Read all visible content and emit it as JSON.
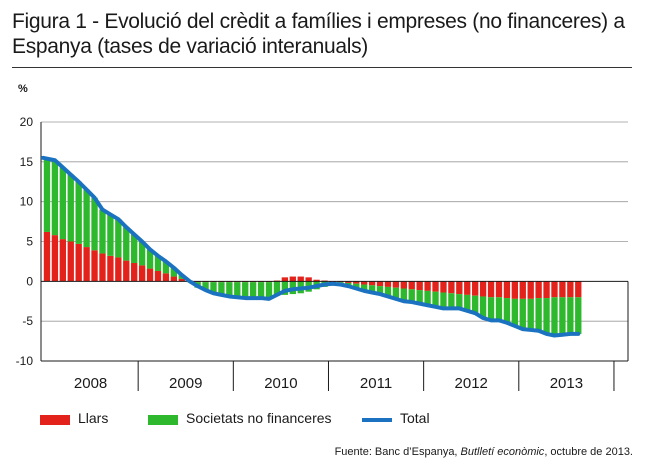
{
  "title": "Figura 1 - Evolució del crèdit a famílies i empreses (no financeres) a Espanya (tases de variació interanuals)",
  "unit_label": "%",
  "legend": {
    "households": "Llars",
    "companies": "Societats no financeres",
    "total": "Total"
  },
  "source": {
    "prefix": "Fuente: Banc d’Espanya, ",
    "publication": "Butlletí econòmic",
    "suffix": ", octubre de 2013."
  },
  "colors": {
    "households": "#e3221b",
    "companies": "#2db82d",
    "total": "#1a72c0"
  },
  "chart_data": {
    "type": "bar",
    "title": "",
    "xlabel": "",
    "ylabel": "%",
    "ylim": [
      -10,
      20
    ],
    "yticks": [
      20,
      15,
      10,
      5,
      0,
      -5,
      -10
    ],
    "x_tick_labels": [
      "2008",
      "2009",
      "2010",
      "2011",
      "2012",
      "2013"
    ],
    "grid": true,
    "legend_position": "bottom",
    "period": "monthly, Jan 2008 – Aug 2013",
    "series": [
      {
        "name": "Llars",
        "kind": "stacked-bar",
        "values": [
          6.2,
          5.8,
          5.3,
          5.0,
          4.7,
          4.3,
          3.9,
          3.5,
          3.2,
          3.0,
          2.6,
          2.3,
          2.0,
          1.6,
          1.3,
          1.0,
          0.6,
          0.3,
          0.1,
          -0.1,
          -0.1,
          -0.1,
          -0.1,
          -0.1,
          -0.1,
          -0.1,
          -0.1,
          -0.1,
          -0.1,
          0.1,
          0.5,
          0.6,
          0.6,
          0.5,
          0.2,
          0.1,
          -0.1,
          -0.1,
          -0.2,
          -0.3,
          -0.4,
          -0.5,
          -0.6,
          -0.7,
          -0.8,
          -0.9,
          -1.0,
          -1.1,
          -1.2,
          -1.3,
          -1.4,
          -1.5,
          -1.6,
          -1.7,
          -1.8,
          -1.9,
          -2.0,
          -2.0,
          -2.1,
          -2.2,
          -2.2,
          -2.2,
          -2.1,
          -2.1,
          -2.0,
          -2.0,
          -2.0,
          -2.0
        ]
      },
      {
        "name": "Societats no financeres",
        "kind": "stacked-bar",
        "values": [
          9.3,
          9.4,
          9.0,
          8.4,
          7.8,
          7.2,
          6.6,
          5.5,
          5.2,
          4.8,
          4.2,
          3.6,
          3.0,
          2.4,
          1.9,
          1.5,
          1.1,
          0.5,
          -0.1,
          -0.7,
          -1.0,
          -1.4,
          -1.6,
          -1.8,
          -1.9,
          -2.0,
          -2.0,
          -2.0,
          -2.1,
          -1.8,
          -1.7,
          -1.6,
          -1.5,
          -1.3,
          -1.0,
          -0.7,
          -0.4,
          -0.3,
          -0.4,
          -0.6,
          -0.8,
          -0.9,
          -1.0,
          -1.2,
          -1.4,
          -1.6,
          -1.6,
          -1.7,
          -1.8,
          -1.9,
          -2.0,
          -1.9,
          -1.8,
          -2.0,
          -2.2,
          -2.7,
          -2.9,
          -2.9,
          -3.1,
          -3.4,
          -3.8,
          -3.9,
          -4.1,
          -4.5,
          -4.8,
          -4.7,
          -4.6,
          -4.6
        ]
      },
      {
        "name": "Total",
        "kind": "line",
        "values": [
          15.5,
          15.2,
          14.3,
          13.4,
          12.5,
          11.5,
          10.5,
          9.0,
          8.4,
          7.8,
          6.8,
          5.9,
          5.0,
          4.0,
          3.2,
          2.5,
          1.7,
          0.8,
          0.0,
          -0.6,
          -1.1,
          -1.5,
          -1.7,
          -1.9,
          -2.0,
          -2.1,
          -2.1,
          -2.1,
          -2.2,
          -1.7,
          -1.2,
          -1.0,
          -0.9,
          -0.8,
          -0.6,
          -0.4,
          -0.3,
          -0.4,
          -0.6,
          -0.9,
          -1.2,
          -1.4,
          -1.6,
          -1.9,
          -2.2,
          -2.5,
          -2.6,
          -2.8,
          -3.0,
          -3.2,
          -3.4,
          -3.4,
          -3.4,
          -3.7,
          -4.0,
          -4.6,
          -4.9,
          -4.9,
          -5.2,
          -5.6,
          -6.0,
          -6.1,
          -6.2,
          -6.6,
          -6.8,
          -6.7,
          -6.6,
          -6.6
        ]
      }
    ]
  }
}
